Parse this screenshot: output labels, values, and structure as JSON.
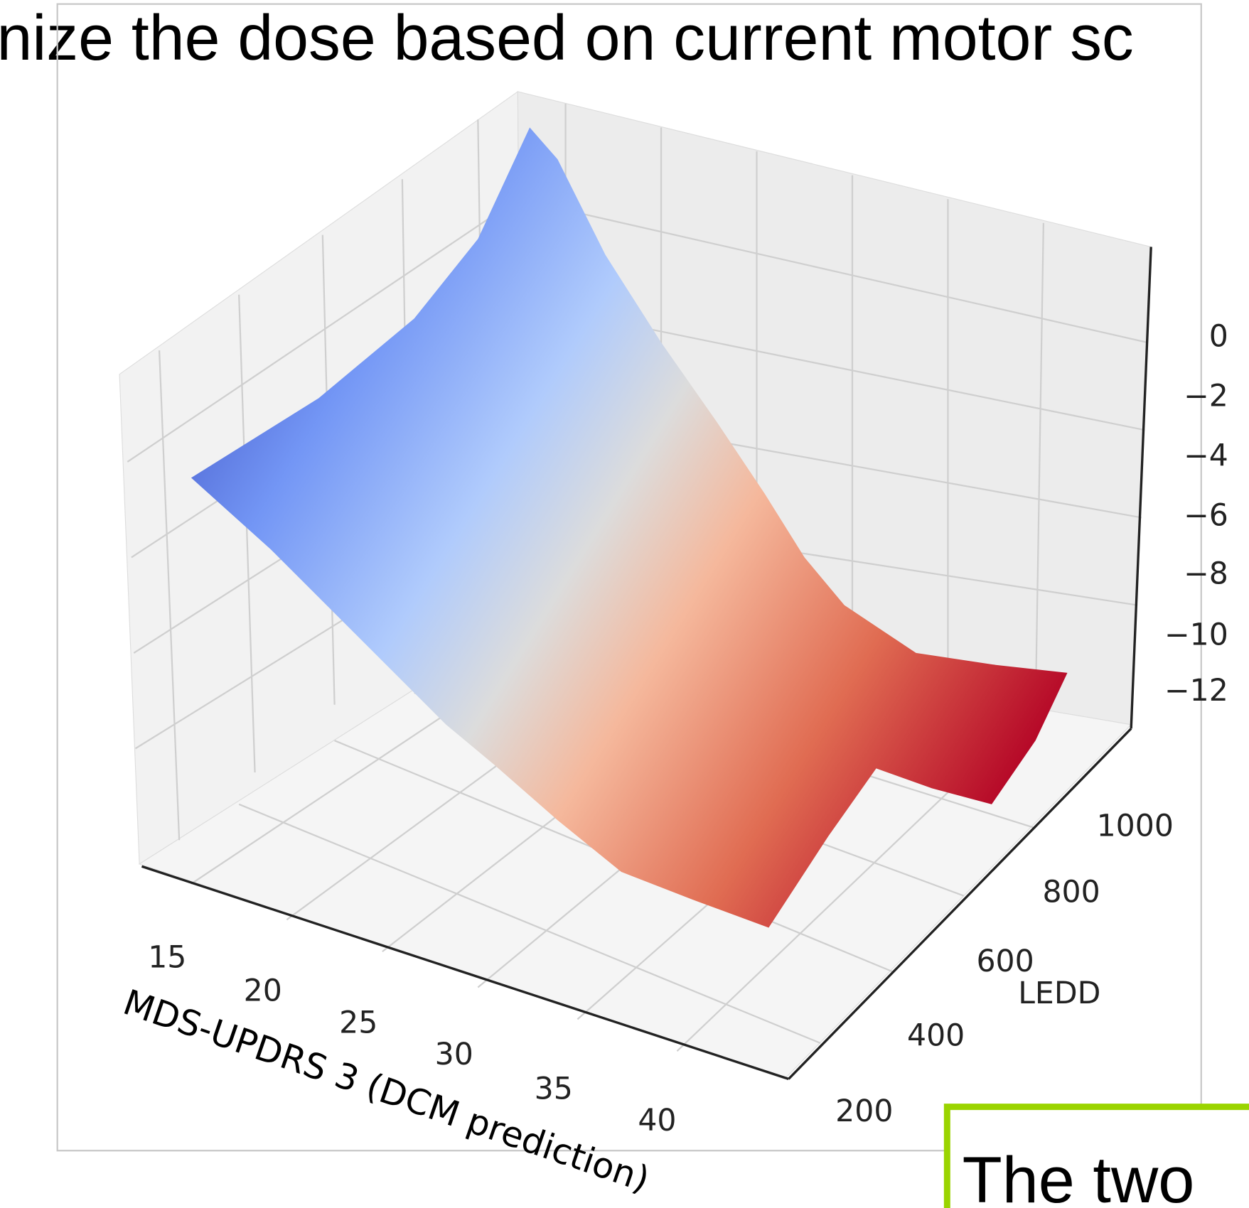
{
  "slide_title": "nize the dose based on current motor sc",
  "plot": {
    "z_ticks": [
      "0",
      "−2",
      "−4",
      "−6",
      "−8",
      "−10",
      "−12"
    ],
    "ledd_ticks": [
      "1000",
      "800",
      "600",
      "400",
      "200"
    ],
    "ledd_label": "LEDD",
    "x_ticks": [
      "15",
      "20",
      "25",
      "30",
      "35",
      "40"
    ],
    "x_label": "MDS-UPDRS 3 (DCM prediction)"
  },
  "text_box": "The two"
}
